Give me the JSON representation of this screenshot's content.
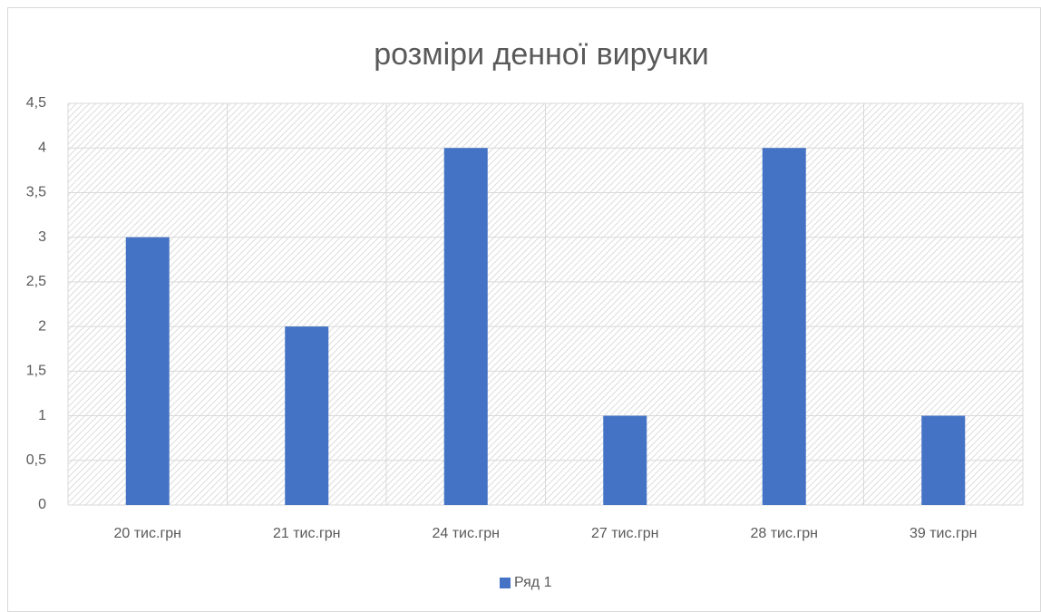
{
  "chart_data": {
    "type": "bar",
    "title": "розміри денної виручки",
    "categories": [
      "20 тис.грн",
      "21 тис.грн",
      "24 тис.грн",
      "27 тис.грн",
      "28 тис.грн",
      "39 тис.грн"
    ],
    "series": [
      {
        "name": "Ряд 1",
        "color": "#4472c4",
        "values": [
          3,
          2,
          4,
          1,
          4,
          1
        ]
      }
    ],
    "ylim": [
      0,
      4.5
    ],
    "yticks": [
      0,
      {
        "value": 0.5,
        "label": "0,5"
      },
      1,
      {
        "value": 1.5,
        "label": "1,5"
      },
      2,
      {
        "value": 2.5,
        "label": "2,5"
      },
      3,
      {
        "value": 3.5,
        "label": "3,5"
      },
      4,
      {
        "value": 4.5,
        "label": "4,5"
      }
    ],
    "grid": true,
    "legend": "bottom"
  }
}
